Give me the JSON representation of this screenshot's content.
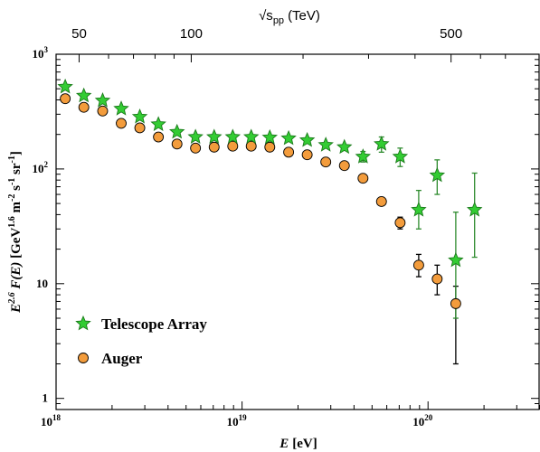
{
  "chart_data": {
    "type": "scatter",
    "x_scale": "log",
    "y_scale": "log",
    "xlim": [
      1e+18,
      4e+20
    ],
    "ylim": [
      0.8,
      1000
    ],
    "top_axis": {
      "label": "√s",
      "label_sub": "pp",
      "label_unit": "(TeV)",
      "ticks": [
        {
          "label": "50",
          "x": 1.33e+18
        },
        {
          "label": "100",
          "x": 5.33e+18
        },
        {
          "label": "500",
          "x": 1.33e+20
        }
      ]
    },
    "xlabel": {
      "main": "E",
      "unit": "[eV]"
    },
    "ylabel": "E^2.6 F(E) [GeV^1.6 m^-2 s^-1 sr^-1]",
    "x_ticks": [
      {
        "base": "10",
        "exp": "18",
        "value": 1e+18
      },
      {
        "base": "10",
        "exp": "19",
        "value": 1e+19
      },
      {
        "base": "10",
        "exp": "20",
        "value": 1e+20
      }
    ],
    "y_ticks": [
      {
        "label": "1",
        "value": 1
      },
      {
        "label": "10",
        "value": 10
      },
      {
        "label": "10",
        "exp": "2",
        "value": 100
      },
      {
        "label": "10",
        "exp": "3",
        "value": 1000
      }
    ],
    "legend_position": "bottom-left",
    "series": [
      {
        "name": "Telescope Array",
        "marker": "star",
        "color": "#33cc33",
        "edge_color": "#1a7a1a",
        "errbar_color": "#2e8b2e",
        "points": [
          {
            "x": 1.12e+18,
            "y": 520
          },
          {
            "x": 1.41e+18,
            "y": 435
          },
          {
            "x": 1.78e+18,
            "y": 395
          },
          {
            "x": 2.24e+18,
            "y": 335
          },
          {
            "x": 2.82e+18,
            "y": 285
          },
          {
            "x": 3.55e+18,
            "y": 245
          },
          {
            "x": 4.47e+18,
            "y": 210
          },
          {
            "x": 5.62e+18,
            "y": 190
          },
          {
            "x": 7.08e+18,
            "y": 190
          },
          {
            "x": 8.91e+18,
            "y": 190
          },
          {
            "x": 1.12e+19,
            "y": 190
          },
          {
            "x": 1.41e+19,
            "y": 188
          },
          {
            "x": 1.78e+19,
            "y": 185
          },
          {
            "x": 2.24e+19,
            "y": 178
          },
          {
            "x": 2.82e+19,
            "y": 162
          },
          {
            "x": 3.55e+19,
            "y": 155
          },
          {
            "x": 4.47e+19,
            "y": 128,
            "err_lo": 115,
            "err_hi": 142
          },
          {
            "x": 5.62e+19,
            "y": 165,
            "err_lo": 140,
            "err_hi": 190
          },
          {
            "x": 7.08e+19,
            "y": 128,
            "err_lo": 105,
            "err_hi": 152
          },
          {
            "x": 8.91e+19,
            "y": 44,
            "err_lo": 30,
            "err_hi": 65
          },
          {
            "x": 1.12e+20,
            "y": 88,
            "err_lo": 60,
            "err_hi": 120
          },
          {
            "x": 1.41e+20,
            "y": 16,
            "err_lo": 5,
            "err_hi": 42
          },
          {
            "x": 1.78e+20,
            "y": 44,
            "err_lo": 17,
            "err_hi": 92
          }
        ]
      },
      {
        "name": "Auger",
        "marker": "circle",
        "color": "#f39c3c",
        "edge_color": "#000000",
        "errbar_color": "#000000",
        "points": [
          {
            "x": 1.12e+18,
            "y": 410
          },
          {
            "x": 1.41e+18,
            "y": 345
          },
          {
            "x": 1.78e+18,
            "y": 320
          },
          {
            "x": 2.24e+18,
            "y": 250
          },
          {
            "x": 2.82e+18,
            "y": 228
          },
          {
            "x": 3.55e+18,
            "y": 190
          },
          {
            "x": 4.47e+18,
            "y": 165
          },
          {
            "x": 5.62e+18,
            "y": 152
          },
          {
            "x": 7.08e+18,
            "y": 155
          },
          {
            "x": 8.91e+18,
            "y": 158
          },
          {
            "x": 1.12e+19,
            "y": 158
          },
          {
            "x": 1.41e+19,
            "y": 155
          },
          {
            "x": 1.78e+19,
            "y": 140
          },
          {
            "x": 2.24e+19,
            "y": 133
          },
          {
            "x": 2.82e+19,
            "y": 115
          },
          {
            "x": 3.55e+19,
            "y": 107
          },
          {
            "x": 4.47e+19,
            "y": 83
          },
          {
            "x": 5.62e+19,
            "y": 52
          },
          {
            "x": 7.08e+19,
            "y": 34,
            "err_lo": 30,
            "err_hi": 38
          },
          {
            "x": 8.91e+19,
            "y": 14.5,
            "err_lo": 11.5,
            "err_hi": 18
          },
          {
            "x": 1.12e+20,
            "y": 11,
            "err_lo": 8,
            "err_hi": 14.5
          },
          {
            "x": 1.41e+20,
            "y": 6.7,
            "err_lo": 2,
            "err_hi": 9.5
          }
        ]
      }
    ]
  }
}
